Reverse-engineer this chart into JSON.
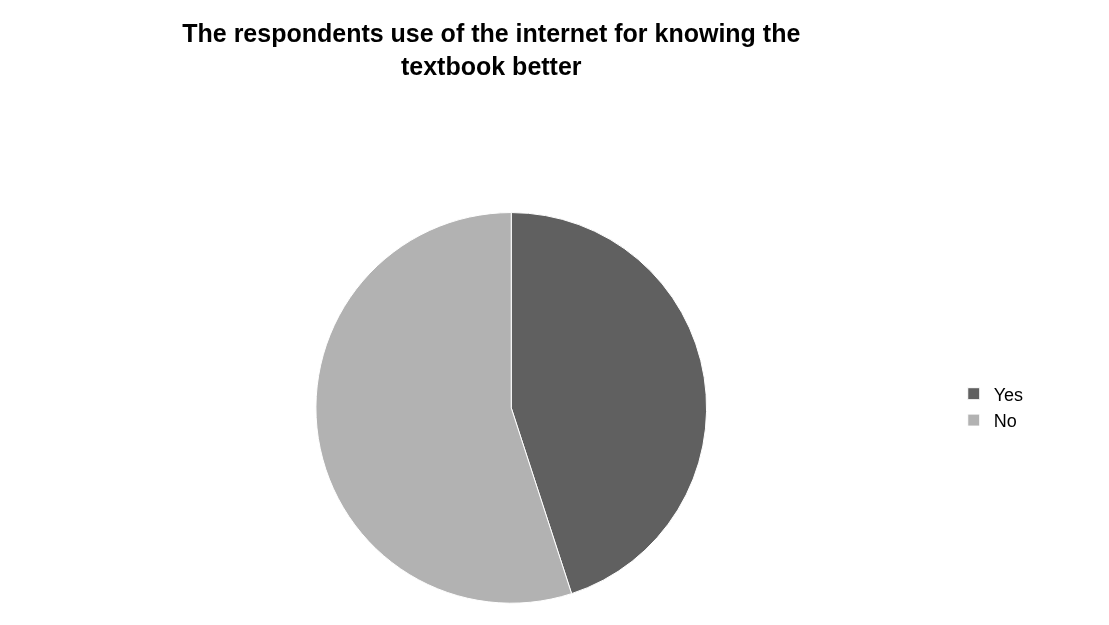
{
  "chart_data": {
    "type": "pie",
    "title": "The respondents use of the internet for knowing the textbook better",
    "categories": [
      "Yes",
      "No"
    ],
    "values": [
      45,
      55
    ],
    "colors": [
      "#606060",
      "#b2b2b2"
    ],
    "legend": "right"
  }
}
